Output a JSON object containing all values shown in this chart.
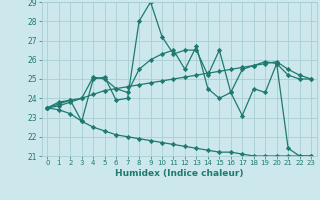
{
  "xlabel": "Humidex (Indice chaleur)",
  "xlim": [
    -0.5,
    23.5
  ],
  "ylim": [
    21,
    29
  ],
  "yticks": [
    21,
    22,
    23,
    24,
    25,
    26,
    27,
    28,
    29
  ],
  "xticks": [
    0,
    1,
    2,
    3,
    4,
    5,
    6,
    7,
    8,
    9,
    10,
    11,
    12,
    13,
    14,
    15,
    16,
    17,
    18,
    19,
    20,
    21,
    22,
    23
  ],
  "bg_color": "#cce8ed",
  "grid_color": "#aacdd5",
  "line_color": "#1e7a70",
  "series": [
    [
      23.5,
      23.8,
      23.9,
      22.8,
      25.0,
      25.1,
      23.9,
      24.0,
      28.0,
      29.0,
      27.2,
      26.3,
      26.5,
      26.5,
      25.2,
      26.5,
      24.3,
      23.1,
      24.5,
      24.3,
      25.8,
      21.4,
      21.0,
      21.0
    ],
    [
      23.5,
      23.7,
      23.9,
      24.0,
      25.1,
      25.0,
      24.5,
      24.3,
      25.5,
      26.0,
      26.3,
      26.5,
      25.5,
      26.7,
      24.5,
      24.0,
      24.3,
      25.5,
      25.7,
      25.9,
      25.8,
      25.2,
      25.0,
      25.0
    ],
    [
      23.5,
      23.6,
      23.8,
      24.0,
      24.2,
      24.4,
      24.5,
      24.6,
      24.7,
      24.8,
      24.9,
      25.0,
      25.1,
      25.2,
      25.3,
      25.4,
      25.5,
      25.6,
      25.7,
      25.8,
      25.9,
      25.5,
      25.2,
      25.0
    ],
    [
      23.5,
      23.4,
      23.2,
      22.8,
      22.5,
      22.3,
      22.1,
      22.0,
      21.9,
      21.8,
      21.7,
      21.6,
      21.5,
      21.4,
      21.3,
      21.2,
      21.2,
      21.1,
      21.0,
      21.0,
      21.0,
      21.0,
      21.0,
      21.0
    ]
  ]
}
